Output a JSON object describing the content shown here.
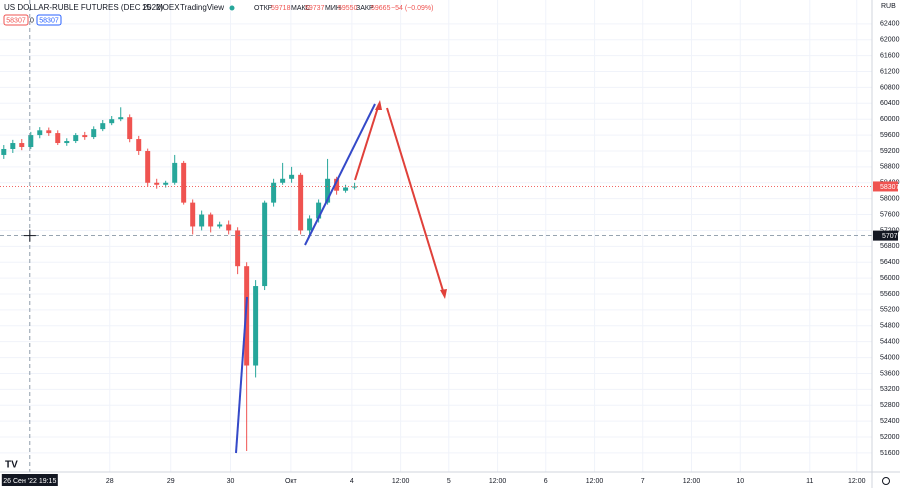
{
  "chart_data": {
    "type": "candlestick",
    "header": {
      "symbol": "US DOLLAR-RUBLE FUTURES (DEC 2022)",
      "interval": "15",
      "exchange": "MOEX",
      "source": "TradingView",
      "open_label": "ОТКР",
      "open": 59718,
      "high_label": "МАКС",
      "high": 59737,
      "low_label": "МИН",
      "low": 59550,
      "close_label": "ЗАКР",
      "close": 59665,
      "change": "−54 (−0.09%)",
      "box_left": 58307,
      "box_middle": 0,
      "box_right": 58307
    },
    "currency": "RUB",
    "x": [
      0.262,
      0.41,
      0.557,
      0.705,
      0.852,
      1.0,
      1.147,
      1.295,
      1.442,
      1.59,
      1.737,
      1.885,
      2.032,
      2.18,
      2.327,
      2.475,
      2.622,
      2.77,
      2.917,
      3.065,
      3.212,
      3.36,
      3.507,
      3.655,
      3.802,
      3.95,
      4.097,
      4.245,
      4.392,
      4.54,
      4.687,
      4.835,
      4.982,
      5.13,
      5.277,
      5.425,
      5.572,
      5.72,
      5.867,
      6.015
    ],
    "open": [
      59100,
      59250,
      59400,
      59300,
      59600,
      59720,
      59650,
      59400,
      59450,
      59600,
      59550,
      59750,
      59900,
      60000,
      60050,
      59500,
      59200,
      58400,
      58350,
      58400,
      58900,
      57900,
      57300,
      57600,
      57300,
      57350,
      57200,
      56300,
      53800,
      55800,
      57900,
      58400,
      58500,
      58600,
      57200,
      57500,
      57900,
      58500,
      58200,
      58280
    ],
    "high": [
      59350,
      59480,
      59500,
      59680,
      59800,
      59790,
      59720,
      59520,
      59650,
      59680,
      59820,
      59980,
      60080,
      60300,
      60120,
      59580,
      59260,
      58500,
      58450,
      59100,
      58950,
      57980,
      57700,
      57650,
      57420,
      57450,
      57280,
      56400,
      55950,
      57950,
      58500,
      58900,
      58800,
      58650,
      57580,
      57980,
      59000,
      58550,
      58350,
      58400
    ],
    "low": [
      59000,
      59150,
      59220,
      59250,
      59520,
      59580,
      59350,
      59330,
      59400,
      59480,
      59500,
      59700,
      59850,
      59950,
      59420,
      59100,
      58300,
      58250,
      58280,
      58350,
      57850,
      57100,
      57200,
      57150,
      57250,
      57100,
      56100,
      51650,
      53500,
      55700,
      57800,
      58350,
      58400,
      57100,
      57050,
      57400,
      57850,
      58100,
      58150,
      58230
    ],
    "close": [
      59250,
      59400,
      59300,
      59600,
      59720,
      59650,
      59400,
      59450,
      59600,
      59550,
      59750,
      59900,
      60000,
      60050,
      59500,
      59200,
      58400,
      58350,
      58400,
      58900,
      57900,
      57300,
      57600,
      57300,
      57350,
      57200,
      56300,
      53800,
      55800,
      57900,
      58400,
      58500,
      58600,
      57200,
      57500,
      57900,
      58500,
      58200,
      58280,
      58307
    ],
    "up_color": "#26a69a",
    "down_color": "#ef5350",
    "last_price": 58307,
    "crosshair": {
      "price": 57070,
      "x": 0.689,
      "time_label": "26 Сен '22  19:15"
    },
    "ylim": [
      51120,
      63000
    ],
    "yticks": [
      62400,
      62000,
      61600,
      61200,
      60800,
      60400,
      60000,
      59600,
      59200,
      58800,
      58400,
      58000,
      57600,
      57200,
      56800,
      56400,
      56000,
      55600,
      55200,
      54800,
      54400,
      54000,
      53600,
      53200,
      52800,
      52400,
      52000,
      51600
    ],
    "xlim": [
      0.2,
      14.5
    ],
    "xticks": [
      {
        "value": 2,
        "label": "28"
      },
      {
        "value": 3,
        "label": "29"
      },
      {
        "value": 3.98,
        "label": "30"
      },
      {
        "value": 4.97,
        "label": "Окт"
      },
      {
        "value": 5.97,
        "label": "4"
      },
      {
        "value": 6.77,
        "label": "12:00"
      },
      {
        "value": 7.56,
        "label": "5"
      },
      {
        "value": 8.36,
        "label": "12:00"
      },
      {
        "value": 9.15,
        "label": "6"
      },
      {
        "value": 9.95,
        "label": "12:00"
      },
      {
        "value": 10.74,
        "label": "7"
      },
      {
        "value": 11.54,
        "label": "12:00"
      },
      {
        "value": 12.34,
        "label": "10"
      },
      {
        "value": 13.48,
        "label": "11"
      },
      {
        "value": 14.25,
        "label": "12:00"
      }
    ],
    "grid": true
  }
}
